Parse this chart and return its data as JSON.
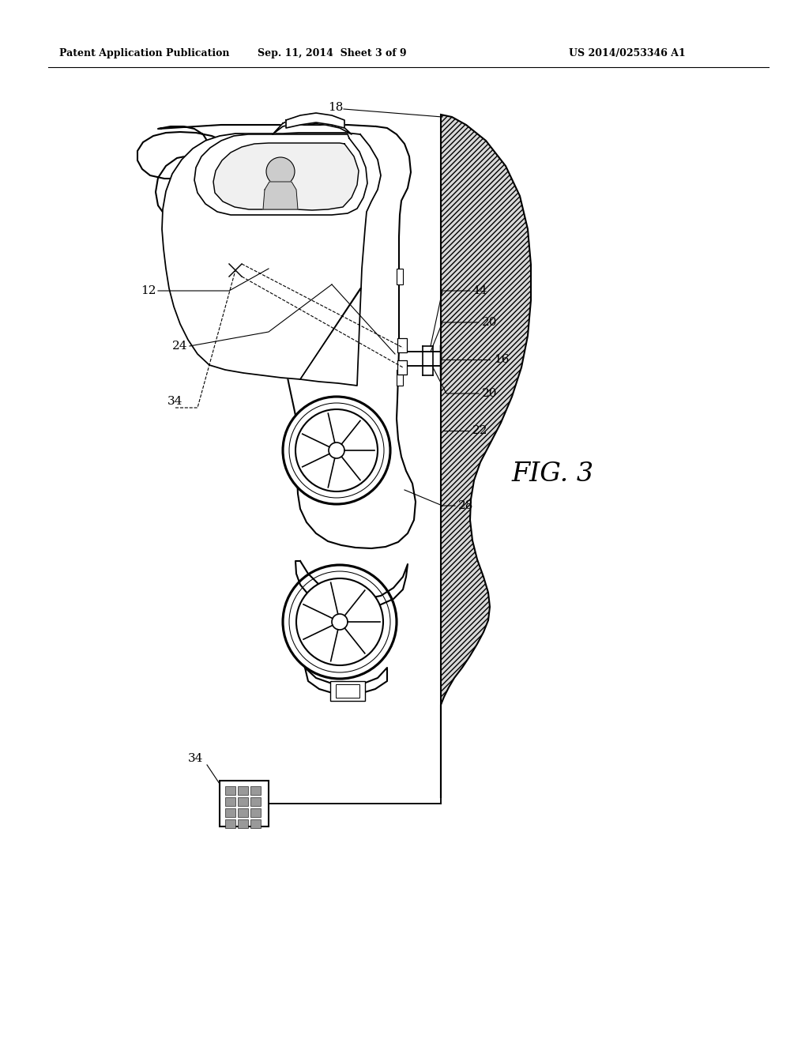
{
  "background_color": "#ffffff",
  "header_left": "Patent Application Publication",
  "header_mid": "Sep. 11, 2014  Sheet 3 of 9",
  "header_right": "US 2014/0253346 A1",
  "fig_label": "FIG. 3",
  "line_color": "#000000",
  "hatch_color": "#000000",
  "label_fontsize": 11,
  "header_fontsize": 9,
  "fig_fontsize": 24,
  "car_fill": "#ffffff",
  "wall_fill": "#e8e8e8"
}
